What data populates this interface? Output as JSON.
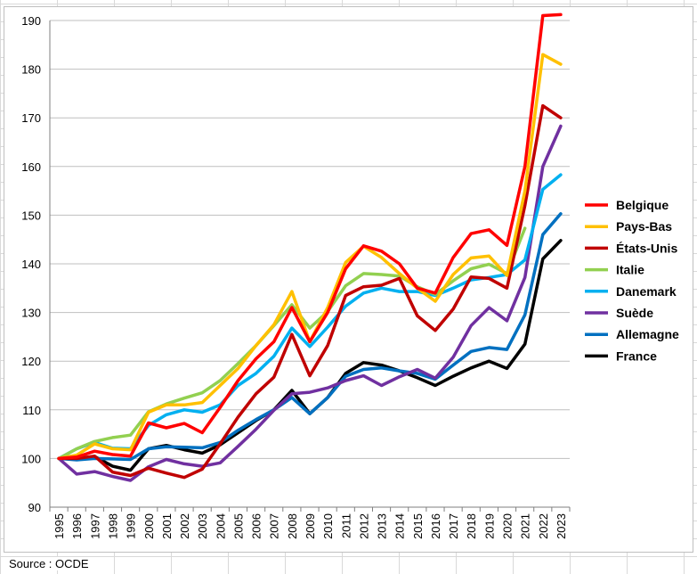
{
  "chart_data": {
    "type": "line",
    "title": "",
    "xlabel": "",
    "ylabel": "",
    "ylim": [
      90,
      190
    ],
    "yticks": [
      90,
      100,
      110,
      120,
      130,
      140,
      150,
      160,
      170,
      180,
      190
    ],
    "grid": "horizontal",
    "legend_position": "right",
    "x": [
      "1995",
      "1996",
      "1997",
      "1998",
      "1999",
      "2000",
      "2001",
      "2002",
      "2003",
      "2004",
      "2005",
      "2006",
      "2007",
      "2008",
      "2009",
      "2010",
      "2011",
      "2012",
      "2013",
      "2014",
      "2015",
      "2016",
      "2017",
      "2018",
      "2019",
      "2020",
      "2021",
      "2022",
      "2023"
    ],
    "series": [
      {
        "name": "Belgique",
        "color": "#ff0000",
        "values": [
          100,
          100.3,
          101.5,
          100.8,
          100.5,
          107.3,
          106.3,
          107.2,
          105.3,
          110.5,
          116,
          120.5,
          124,
          131,
          124,
          130,
          139,
          143.7,
          142.6,
          140,
          135,
          134,
          141.3,
          146.2,
          147,
          143.8,
          160,
          191,
          191.2
        ]
      },
      {
        "name": "Pays-Bas",
        "color": "#ffc000",
        "values": [
          100,
          100.7,
          103,
          102,
          101.8,
          109.5,
          111,
          111,
          111.5,
          115,
          118.5,
          123.2,
          127.5,
          134.3,
          124,
          131,
          140.3,
          143.6,
          141.3,
          138,
          135,
          132.3,
          137.8,
          141.2,
          141.6,
          137.6,
          155,
          183,
          181
        ]
      },
      {
        "name": "États-Unis",
        "color": "#c00000",
        "values": [
          100,
          100,
          100.5,
          97.2,
          96.5,
          98,
          97,
          96.1,
          97.8,
          103,
          108.5,
          113.3,
          116.7,
          125.5,
          117,
          123.2,
          133.5,
          135.3,
          135.6,
          137,
          129.3,
          126.3,
          130.7,
          137.3,
          137,
          135,
          152,
          172.5,
          170
        ]
      },
      {
        "name": "Italie",
        "color": "#92d050",
        "values": [
          100,
          102,
          103.5,
          104.3,
          104.8,
          109.6,
          111.2,
          112.4,
          113.5,
          116,
          119.5,
          123.2,
          127.3,
          131.6,
          126.8,
          130.2,
          135.5,
          138,
          137.8,
          137.5,
          135.3,
          133.7,
          136.5,
          139,
          139.9,
          138,
          147.3,
          null,
          null
        ]
      },
      {
        "name": "Danemark",
        "color": "#00b0f0",
        "values": [
          100,
          102,
          103.3,
          102.1,
          102,
          106.8,
          109,
          110,
          109.5,
          111,
          115,
          117.5,
          121,
          126.8,
          123,
          127,
          131.3,
          134,
          135,
          134.3,
          134.3,
          133.5,
          135,
          136.7,
          137.2,
          137.8,
          140.8,
          155.3,
          158.3
        ]
      },
      {
        "name": "Suède",
        "color": "#7030a0",
        "values": [
          100,
          96.8,
          97.3,
          96.3,
          95.5,
          98.3,
          99.8,
          98.9,
          98.4,
          99.1,
          102.5,
          106,
          109.9,
          113.3,
          113.6,
          114.5,
          116,
          117,
          115,
          116.8,
          118.3,
          116.5,
          120.8,
          127.3,
          131,
          128.3,
          137.2,
          160,
          168.3
        ]
      },
      {
        "name": "Allemagne",
        "color": "#0070c0",
        "values": [
          100,
          99.7,
          100,
          99.9,
          99.8,
          102,
          102.4,
          102.3,
          102.2,
          103.3,
          105.8,
          108,
          110,
          112.5,
          109.2,
          112.5,
          116.9,
          118.3,
          118.6,
          118,
          117.5,
          116.3,
          119.2,
          122,
          122.8,
          122.4,
          129.5,
          146,
          150.3
        ]
      },
      {
        "name": "France",
        "color": "#000000",
        "values": [
          100,
          99.9,
          100.4,
          98.4,
          97.6,
          102,
          102.7,
          101.8,
          101.1,
          102.8,
          105.3,
          107.8,
          110,
          114,
          109.2,
          112.5,
          117.5,
          119.7,
          119.2,
          118,
          116.6,
          115,
          116.9,
          118.6,
          120,
          118.5,
          123.5,
          141,
          144.8
        ]
      }
    ]
  },
  "footer": {
    "source": "Source : OCDE"
  }
}
